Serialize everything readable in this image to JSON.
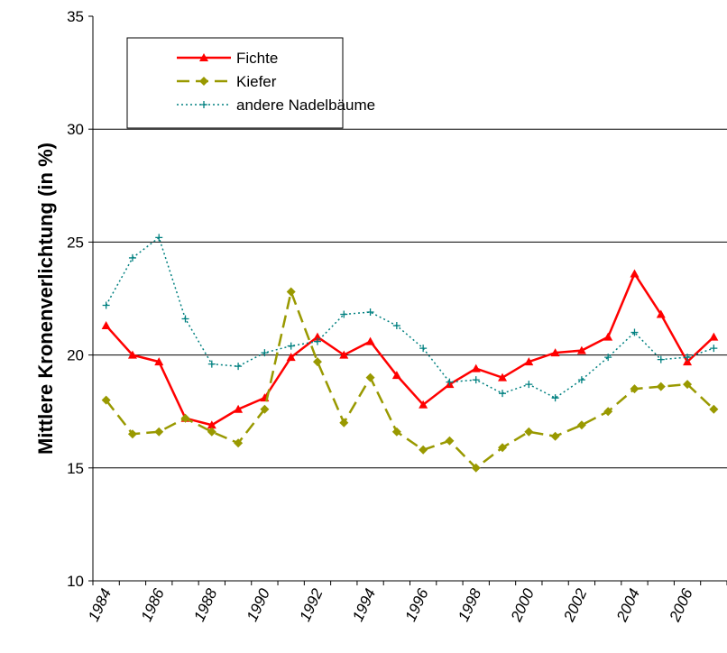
{
  "chart_data": {
    "type": "line",
    "y_label": "Mittlere Kronenverlichtung (in %)",
    "categories": [
      "1984",
      null,
      "1986",
      null,
      "1988",
      null,
      "1990",
      null,
      "1992",
      null,
      "1994",
      null,
      "1996",
      null,
      "1998",
      null,
      "2000",
      null,
      "2002",
      null,
      "2004",
      null,
      "2006",
      null
    ],
    "series": [
      {
        "name": "Fichte",
        "color": "#ff0000",
        "style": "solid",
        "marker": "triangle",
        "values": [
          21.3,
          20.0,
          19.7,
          17.2,
          16.9,
          17.6,
          18.1,
          19.9,
          20.8,
          20.0,
          20.6,
          19.1,
          17.8,
          18.7,
          19.4,
          19.0,
          19.7,
          20.1,
          20.2,
          20.8,
          23.6,
          21.8,
          19.7,
          20.8
        ]
      },
      {
        "name": "Kiefer",
        "color": "#999900",
        "style": "dashed",
        "marker": "diamond",
        "values": [
          18.0,
          16.5,
          16.6,
          17.2,
          16.6,
          16.1,
          17.6,
          22.8,
          19.7,
          17.0,
          19.0,
          16.6,
          15.8,
          16.2,
          15.0,
          15.9,
          16.6,
          16.4,
          16.9,
          17.5,
          18.5,
          18.6,
          18.7,
          17.6
        ]
      },
      {
        "name": "andere Nadelbäume",
        "color": "#008080",
        "style": "dotted",
        "marker": "plus",
        "values": [
          22.2,
          24.3,
          25.2,
          21.6,
          19.6,
          19.5,
          20.1,
          20.4,
          20.6,
          21.8,
          21.9,
          21.3,
          20.3,
          18.8,
          18.9,
          18.3,
          18.7,
          18.1,
          18.9,
          19.9,
          21.0,
          19.8,
          19.9,
          20.3
        ]
      }
    ],
    "ylim": [
      10,
      35
    ],
    "yticks": [
      10,
      15,
      20,
      25,
      30,
      35
    ],
    "grid": true,
    "legend": "top-left"
  }
}
